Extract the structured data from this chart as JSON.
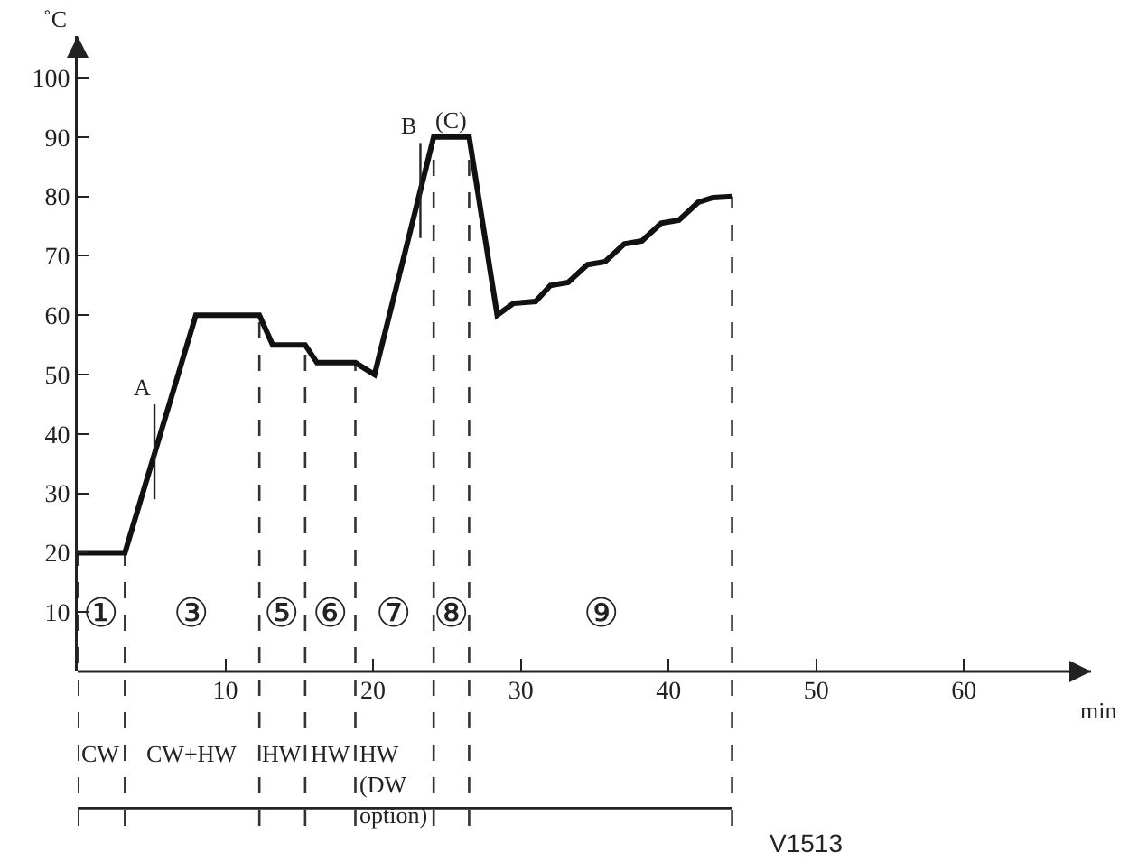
{
  "chart_data": {
    "type": "line",
    "ylabel": "˚C",
    "xlabel": "min",
    "x": [
      0,
      3.2,
      8,
      12.3,
      13.2,
      15.4,
      16.2,
      18.8,
      20.1,
      24.1,
      26.5,
      28.4,
      29.5,
      31,
      32,
      33.2,
      34.5,
      35.7,
      37,
      38.2,
      39.5,
      40.7,
      42,
      43,
      44.3
    ],
    "series": [
      {
        "color": "#111111",
        "values": [
          20,
          20,
          60,
          60,
          55,
          55,
          52,
          52,
          50,
          90,
          90,
          60,
          62,
          62.3,
          65,
          65.5,
          68.5,
          69,
          72,
          72.5,
          75.5,
          76,
          79,
          79.8,
          80
        ]
      }
    ],
    "xlim": [
      0,
      68.6
    ],
    "xticks": [
      10,
      20,
      30,
      40,
      50,
      60
    ],
    "ylim": [
      0,
      107
    ],
    "yticks": [
      10,
      20,
      30,
      40,
      50,
      60,
      70,
      80,
      90,
      100
    ],
    "grid": false,
    "marker": "none",
    "line_style": "solid",
    "ref_lines": [
      {
        "axis": "x",
        "value": 0,
        "color": "#333333",
        "line_style": "dashed"
      },
      {
        "axis": "x",
        "value": 3.2,
        "color": "#333333",
        "line_style": "dashed"
      },
      {
        "axis": "x",
        "value": 12.3,
        "color": "#333333",
        "line_style": "dashed"
      },
      {
        "axis": "x",
        "value": 15.4,
        "color": "#333333",
        "line_style": "dashed"
      },
      {
        "axis": "x",
        "value": 18.8,
        "color": "#333333",
        "line_style": "dashed"
      },
      {
        "axis": "x",
        "value": 24.1,
        "color": "#333333",
        "line_style": "dashed"
      },
      {
        "axis": "x",
        "value": 26.5,
        "color": "#333333",
        "line_style": "dashed"
      },
      {
        "axis": "x",
        "value": 44.3,
        "color": "#333333",
        "line_style": "dashed"
      }
    ],
    "annotations": [
      {
        "text": "A",
        "x": 5.2,
        "y": 37
      },
      {
        "text": "B",
        "x": 23.2,
        "y": 81
      },
      {
        "text": "(C)",
        "x": 25.3,
        "y": 90
      },
      "①",
      "③",
      "⑤",
      "⑥",
      "⑦",
      "⑧",
      "⑨",
      "CW",
      "CW+HW",
      "HW",
      "HW",
      "HW\n(DW\noption)",
      "V1513"
    ]
  }
}
